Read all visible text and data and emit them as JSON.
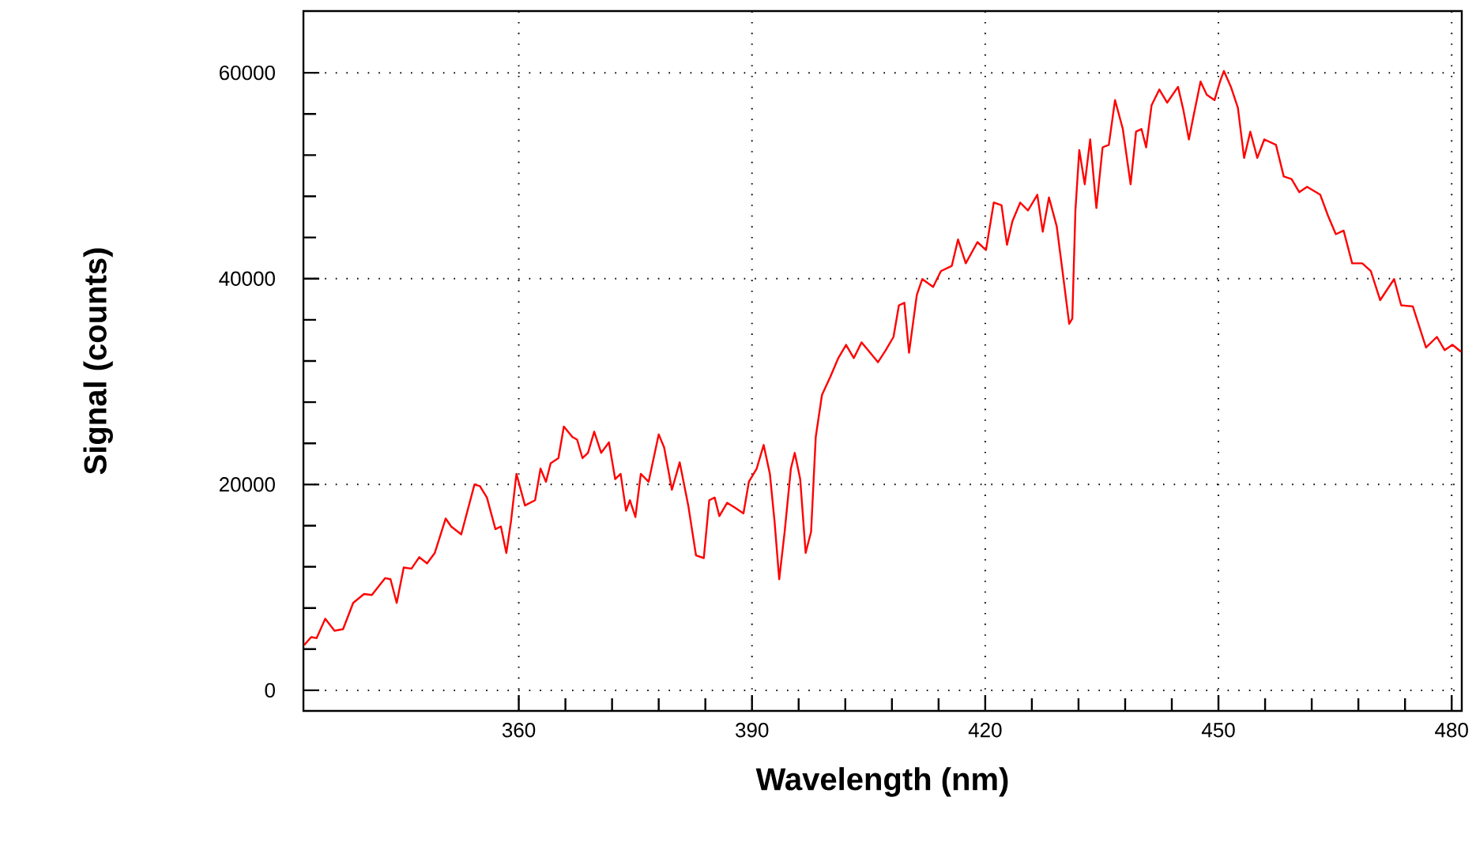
{
  "chart_data": {
    "type": "line",
    "xlabel": "Wavelength (nm)",
    "ylabel": "Signal (counts)",
    "xlim": [
      332.3,
      481.3
    ],
    "ylim": [
      -2000,
      66000
    ],
    "xticks": [
      360,
      390,
      420,
      450,
      480
    ],
    "yticks": [
      0,
      20000,
      40000,
      60000
    ],
    "grid": true,
    "marker": "none",
    "line_style": "solid",
    "series": [
      {
        "color": "#ff0000",
        "x": [
          332.4,
          333.3,
          334.0,
          335.1,
          336.3,
          337.4,
          338.7,
          340.1,
          341.1,
          342.8,
          343.5,
          344.3,
          345.2,
          346.2,
          347.2,
          348.2,
          349.2,
          350.6,
          351.3,
          352.6,
          354.3,
          355.0,
          355.9,
          357.0,
          357.7,
          358.4,
          359.0,
          359.7,
          360.8,
          362.1,
          362.8,
          363.5,
          364.1,
          365.1,
          365.8,
          366.9,
          367.5,
          368.2,
          368.9,
          369.7,
          370.6,
          371.6,
          372.4,
          373.1,
          373.8,
          374.3,
          375.0,
          375.7,
          376.7,
          378.0,
          378.7,
          379.7,
          380.7,
          381.8,
          382.8,
          383.8,
          384.5,
          385.2,
          385.8,
          386.8,
          387.9,
          388.9,
          389.6,
          390.6,
          391.5,
          392.3,
          392.9,
          393.5,
          394.2,
          395.0,
          395.5,
          396.2,
          396.9,
          397.6,
          398.2,
          399.0,
          400.1,
          401.1,
          402.1,
          403.1,
          404.1,
          405.2,
          406.2,
          407.2,
          408.2,
          408.9,
          409.6,
          410.2,
          411.2,
          411.9,
          413.3,
          414.3,
          415.7,
          416.5,
          417.5,
          419.0,
          420.1,
          421.1,
          422.1,
          422.8,
          423.5,
          424.5,
          425.5,
          426.7,
          427.4,
          428.2,
          429.2,
          429.9,
          430.8,
          431.2,
          431.6,
          432.1,
          432.8,
          433.5,
          434.3,
          435.1,
          435.9,
          436.7,
          437.7,
          438.7,
          439.4,
          440.1,
          440.7,
          441.4,
          442.4,
          443.4,
          444.8,
          445.5,
          446.2,
          446.8,
          447.7,
          448.5,
          449.5,
          450.2,
          450.7,
          451.6,
          452.5,
          453.3,
          454.1,
          455.0,
          455.9,
          457.4,
          458.4,
          459.4,
          460.4,
          461.4,
          463.1,
          464.1,
          465.1,
          466.1,
          467.2,
          468.5,
          469.6,
          470.8,
          472.6,
          473.5,
          475.0,
          476.7,
          478.1,
          479.1,
          480.1,
          481.2
        ],
        "values": [
          4400,
          5170,
          5070,
          6950,
          5790,
          5940,
          8490,
          9360,
          9260,
          10900,
          10800,
          8490,
          11930,
          11820,
          12940,
          12330,
          13350,
          16690,
          15920,
          15150,
          20000,
          19850,
          18730,
          15660,
          15920,
          13350,
          16420,
          21030,
          17960,
          18470,
          21540,
          20260,
          22060,
          22560,
          25630,
          24610,
          24360,
          22560,
          23070,
          25130,
          23070,
          24100,
          20520,
          21030,
          17450,
          18470,
          16840,
          21030,
          20260,
          24870,
          23590,
          19490,
          22150,
          17960,
          13100,
          12850,
          18470,
          18730,
          16930,
          18220,
          17700,
          17190,
          20260,
          21540,
          23840,
          21030,
          16420,
          10790,
          15400,
          21540,
          23070,
          20520,
          13350,
          15400,
          24610,
          28700,
          30500,
          32280,
          33570,
          32280,
          33810,
          32800,
          31880,
          33050,
          34340,
          37410,
          37650,
          32800,
          38420,
          39960,
          39190,
          40730,
          41240,
          43800,
          41490,
          43550,
          42780,
          47390,
          47120,
          43290,
          45590,
          47390,
          46620,
          48150,
          44560,
          47890,
          45080,
          40980,
          35610,
          36120,
          46620,
          52500,
          49170,
          53530,
          46860,
          52760,
          53000,
          57350,
          54540,
          49170,
          54280,
          54540,
          52760,
          56850,
          58380,
          57100,
          58640,
          56340,
          53530,
          55830,
          59150,
          57870,
          57350,
          59150,
          60180,
          58640,
          56600,
          51730,
          54280,
          51730,
          53530,
          53000,
          49930,
          49680,
          48400,
          48920,
          48150,
          46100,
          44320,
          44670,
          41490,
          41490,
          40730,
          37910,
          39960,
          37410,
          37300,
          33310,
          34340,
          33050,
          33570,
          32900
        ]
      }
    ]
  }
}
